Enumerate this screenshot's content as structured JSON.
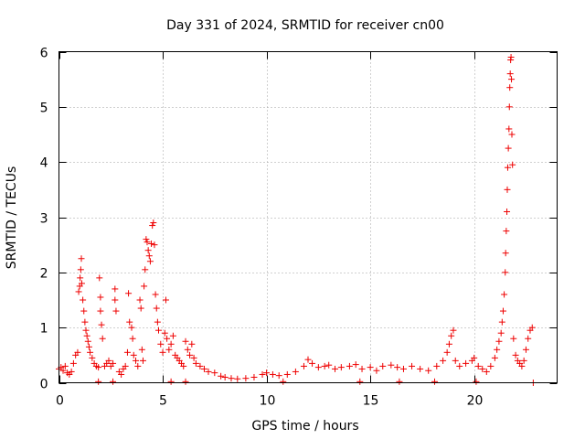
{
  "chart_data": {
    "type": "scatter",
    "title": "Day 331 of 2024, SRMTID for receiver cn00",
    "xlabel": "GPS time / hours",
    "ylabel": "SRMTID / TECUs",
    "xlim": [
      0,
      24
    ],
    "ylim": [
      0,
      6
    ],
    "xticks": [
      0,
      5,
      10,
      15,
      20
    ],
    "yticks": [
      0,
      1,
      2,
      3,
      4,
      5,
      6
    ],
    "xtick_labels": [
      "0",
      "5",
      "10",
      "15",
      "20"
    ],
    "ytick_labels": [
      "0",
      "1",
      "2",
      "3",
      "4",
      "5",
      "6"
    ],
    "grid": true,
    "marker": "+",
    "color": "#ee0000",
    "series": [
      {
        "name": "SRMTID",
        "points": [
          [
            0.0,
            0.25
          ],
          [
            0.1,
            0.28
          ],
          [
            0.2,
            0.22
          ],
          [
            0.3,
            0.3
          ],
          [
            0.4,
            0.18
          ],
          [
            0.5,
            0.15
          ],
          [
            0.6,
            0.2
          ],
          [
            0.7,
            0.35
          ],
          [
            0.8,
            0.5
          ],
          [
            0.9,
            0.55
          ],
          [
            0.95,
            1.65
          ],
          [
            1.0,
            1.75
          ],
          [
            1.02,
            1.9
          ],
          [
            1.05,
            2.05
          ],
          [
            1.08,
            2.25
          ],
          [
            1.1,
            1.8
          ],
          [
            1.15,
            1.5
          ],
          [
            1.2,
            1.3
          ],
          [
            1.25,
            1.1
          ],
          [
            1.3,
            0.95
          ],
          [
            1.35,
            0.85
          ],
          [
            1.4,
            0.75
          ],
          [
            1.45,
            0.65
          ],
          [
            1.5,
            0.55
          ],
          [
            1.6,
            0.45
          ],
          [
            1.7,
            0.35
          ],
          [
            1.8,
            0.3
          ],
          [
            1.9,
            0.28
          ],
          [
            1.95,
            1.9
          ],
          [
            2.0,
            1.55
          ],
          [
            2.0,
            1.3
          ],
          [
            2.05,
            1.05
          ],
          [
            2.1,
            0.8
          ],
          [
            2.2,
            0.3
          ],
          [
            2.3,
            0.35
          ],
          [
            2.4,
            0.4
          ],
          [
            2.5,
            0.3
          ],
          [
            2.6,
            0.35
          ],
          [
            2.7,
            1.7
          ],
          [
            2.7,
            1.5
          ],
          [
            2.75,
            1.3
          ],
          [
            2.9,
            0.2
          ],
          [
            3.0,
            0.15
          ],
          [
            3.1,
            0.25
          ],
          [
            3.2,
            0.3
          ],
          [
            3.3,
            0.55
          ],
          [
            3.35,
            1.62
          ],
          [
            3.4,
            1.1
          ],
          [
            3.5,
            1.0
          ],
          [
            3.55,
            0.8
          ],
          [
            3.6,
            0.5
          ],
          [
            3.7,
            0.4
          ],
          [
            3.8,
            0.3
          ],
          [
            3.9,
            1.5
          ],
          [
            3.95,
            1.35
          ],
          [
            4.0,
            0.6
          ],
          [
            4.05,
            0.4
          ],
          [
            4.1,
            1.75
          ],
          [
            4.15,
            2.05
          ],
          [
            4.2,
            2.6
          ],
          [
            4.25,
            2.55
          ],
          [
            4.3,
            2.4
          ],
          [
            4.35,
            2.3
          ],
          [
            4.4,
            2.2
          ],
          [
            4.45,
            2.52
          ],
          [
            4.5,
            2.85
          ],
          [
            4.55,
            2.9
          ],
          [
            4.6,
            2.5
          ],
          [
            4.65,
            1.6
          ],
          [
            4.7,
            1.35
          ],
          [
            4.75,
            1.1
          ],
          [
            4.8,
            0.95
          ],
          [
            4.9,
            0.7
          ],
          [
            5.0,
            0.55
          ],
          [
            5.1,
            0.9
          ],
          [
            5.15,
            1.5
          ],
          [
            5.2,
            0.8
          ],
          [
            5.3,
            0.6
          ],
          [
            5.4,
            0.7
          ],
          [
            5.5,
            0.85
          ],
          [
            5.6,
            0.5
          ],
          [
            5.7,
            0.45
          ],
          [
            5.8,
            0.4
          ],
          [
            5.9,
            0.35
          ],
          [
            6.0,
            0.3
          ],
          [
            6.1,
            0.75
          ],
          [
            6.2,
            0.6
          ],
          [
            6.3,
            0.5
          ],
          [
            6.4,
            0.7
          ],
          [
            6.5,
            0.45
          ],
          [
            6.6,
            0.35
          ],
          [
            6.8,
            0.3
          ],
          [
            7.0,
            0.25
          ],
          [
            7.2,
            0.2
          ],
          [
            7.5,
            0.18
          ],
          [
            7.8,
            0.12
          ],
          [
            8.0,
            0.1
          ],
          [
            8.3,
            0.08
          ],
          [
            8.6,
            0.07
          ],
          [
            9.0,
            0.08
          ],
          [
            9.4,
            0.1
          ],
          [
            9.8,
            0.15
          ],
          [
            10.0,
            0.18
          ],
          [
            10.3,
            0.15
          ],
          [
            10.6,
            0.13
          ],
          [
            11.0,
            0.15
          ],
          [
            11.4,
            0.2
          ],
          [
            11.8,
            0.3
          ],
          [
            12.0,
            0.42
          ],
          [
            12.2,
            0.35
          ],
          [
            12.5,
            0.28
          ],
          [
            12.8,
            0.3
          ],
          [
            13.0,
            0.32
          ],
          [
            13.3,
            0.25
          ],
          [
            13.6,
            0.28
          ],
          [
            14.0,
            0.3
          ],
          [
            14.3,
            0.33
          ],
          [
            14.6,
            0.25
          ],
          [
            15.0,
            0.28
          ],
          [
            15.3,
            0.22
          ],
          [
            15.6,
            0.3
          ],
          [
            16.0,
            0.32
          ],
          [
            16.3,
            0.28
          ],
          [
            16.6,
            0.25
          ],
          [
            17.0,
            0.3
          ],
          [
            17.4,
            0.25
          ],
          [
            17.8,
            0.22
          ],
          [
            18.2,
            0.3
          ],
          [
            18.5,
            0.4
          ],
          [
            18.7,
            0.55
          ],
          [
            18.8,
            0.7
          ],
          [
            18.9,
            0.85
          ],
          [
            19.0,
            0.95
          ],
          [
            19.1,
            0.4
          ],
          [
            19.3,
            0.3
          ],
          [
            19.6,
            0.35
          ],
          [
            19.9,
            0.4
          ],
          [
            20.0,
            0.45
          ],
          [
            20.2,
            0.3
          ],
          [
            20.4,
            0.25
          ],
          [
            20.6,
            0.2
          ],
          [
            20.8,
            0.3
          ],
          [
            21.0,
            0.45
          ],
          [
            21.1,
            0.6
          ],
          [
            21.2,
            0.75
          ],
          [
            21.3,
            0.9
          ],
          [
            21.35,
            1.1
          ],
          [
            21.4,
            1.3
          ],
          [
            21.45,
            1.6
          ],
          [
            21.5,
            2.0
          ],
          [
            21.52,
            2.35
          ],
          [
            21.55,
            2.75
          ],
          [
            21.58,
            3.1
          ],
          [
            21.6,
            3.5
          ],
          [
            21.62,
            3.9
          ],
          [
            21.65,
            4.25
          ],
          [
            21.68,
            4.6
          ],
          [
            21.7,
            5.0
          ],
          [
            21.72,
            5.35
          ],
          [
            21.74,
            5.6
          ],
          [
            21.76,
            5.85
          ],
          [
            21.78,
            5.9
          ],
          [
            21.8,
            5.5
          ],
          [
            21.82,
            4.5
          ],
          [
            21.85,
            3.95
          ],
          [
            21.9,
            0.8
          ],
          [
            22.0,
            0.5
          ],
          [
            22.1,
            0.4
          ],
          [
            22.2,
            0.35
          ],
          [
            22.3,
            0.3
          ],
          [
            22.4,
            0.4
          ],
          [
            22.5,
            0.6
          ],
          [
            22.6,
            0.8
          ],
          [
            22.7,
            0.95
          ],
          [
            22.8,
            1.0
          ],
          [
            22.85,
            0.0
          ],
          [
            1.9,
            0.02
          ],
          [
            2.6,
            0.02
          ],
          [
            5.4,
            0.02
          ],
          [
            6.1,
            0.02
          ],
          [
            10.8,
            0.02
          ],
          [
            14.5,
            0.02
          ],
          [
            16.4,
            0.02
          ],
          [
            18.1,
            0.02
          ],
          [
            20.1,
            0.02
          ]
        ]
      }
    ]
  }
}
